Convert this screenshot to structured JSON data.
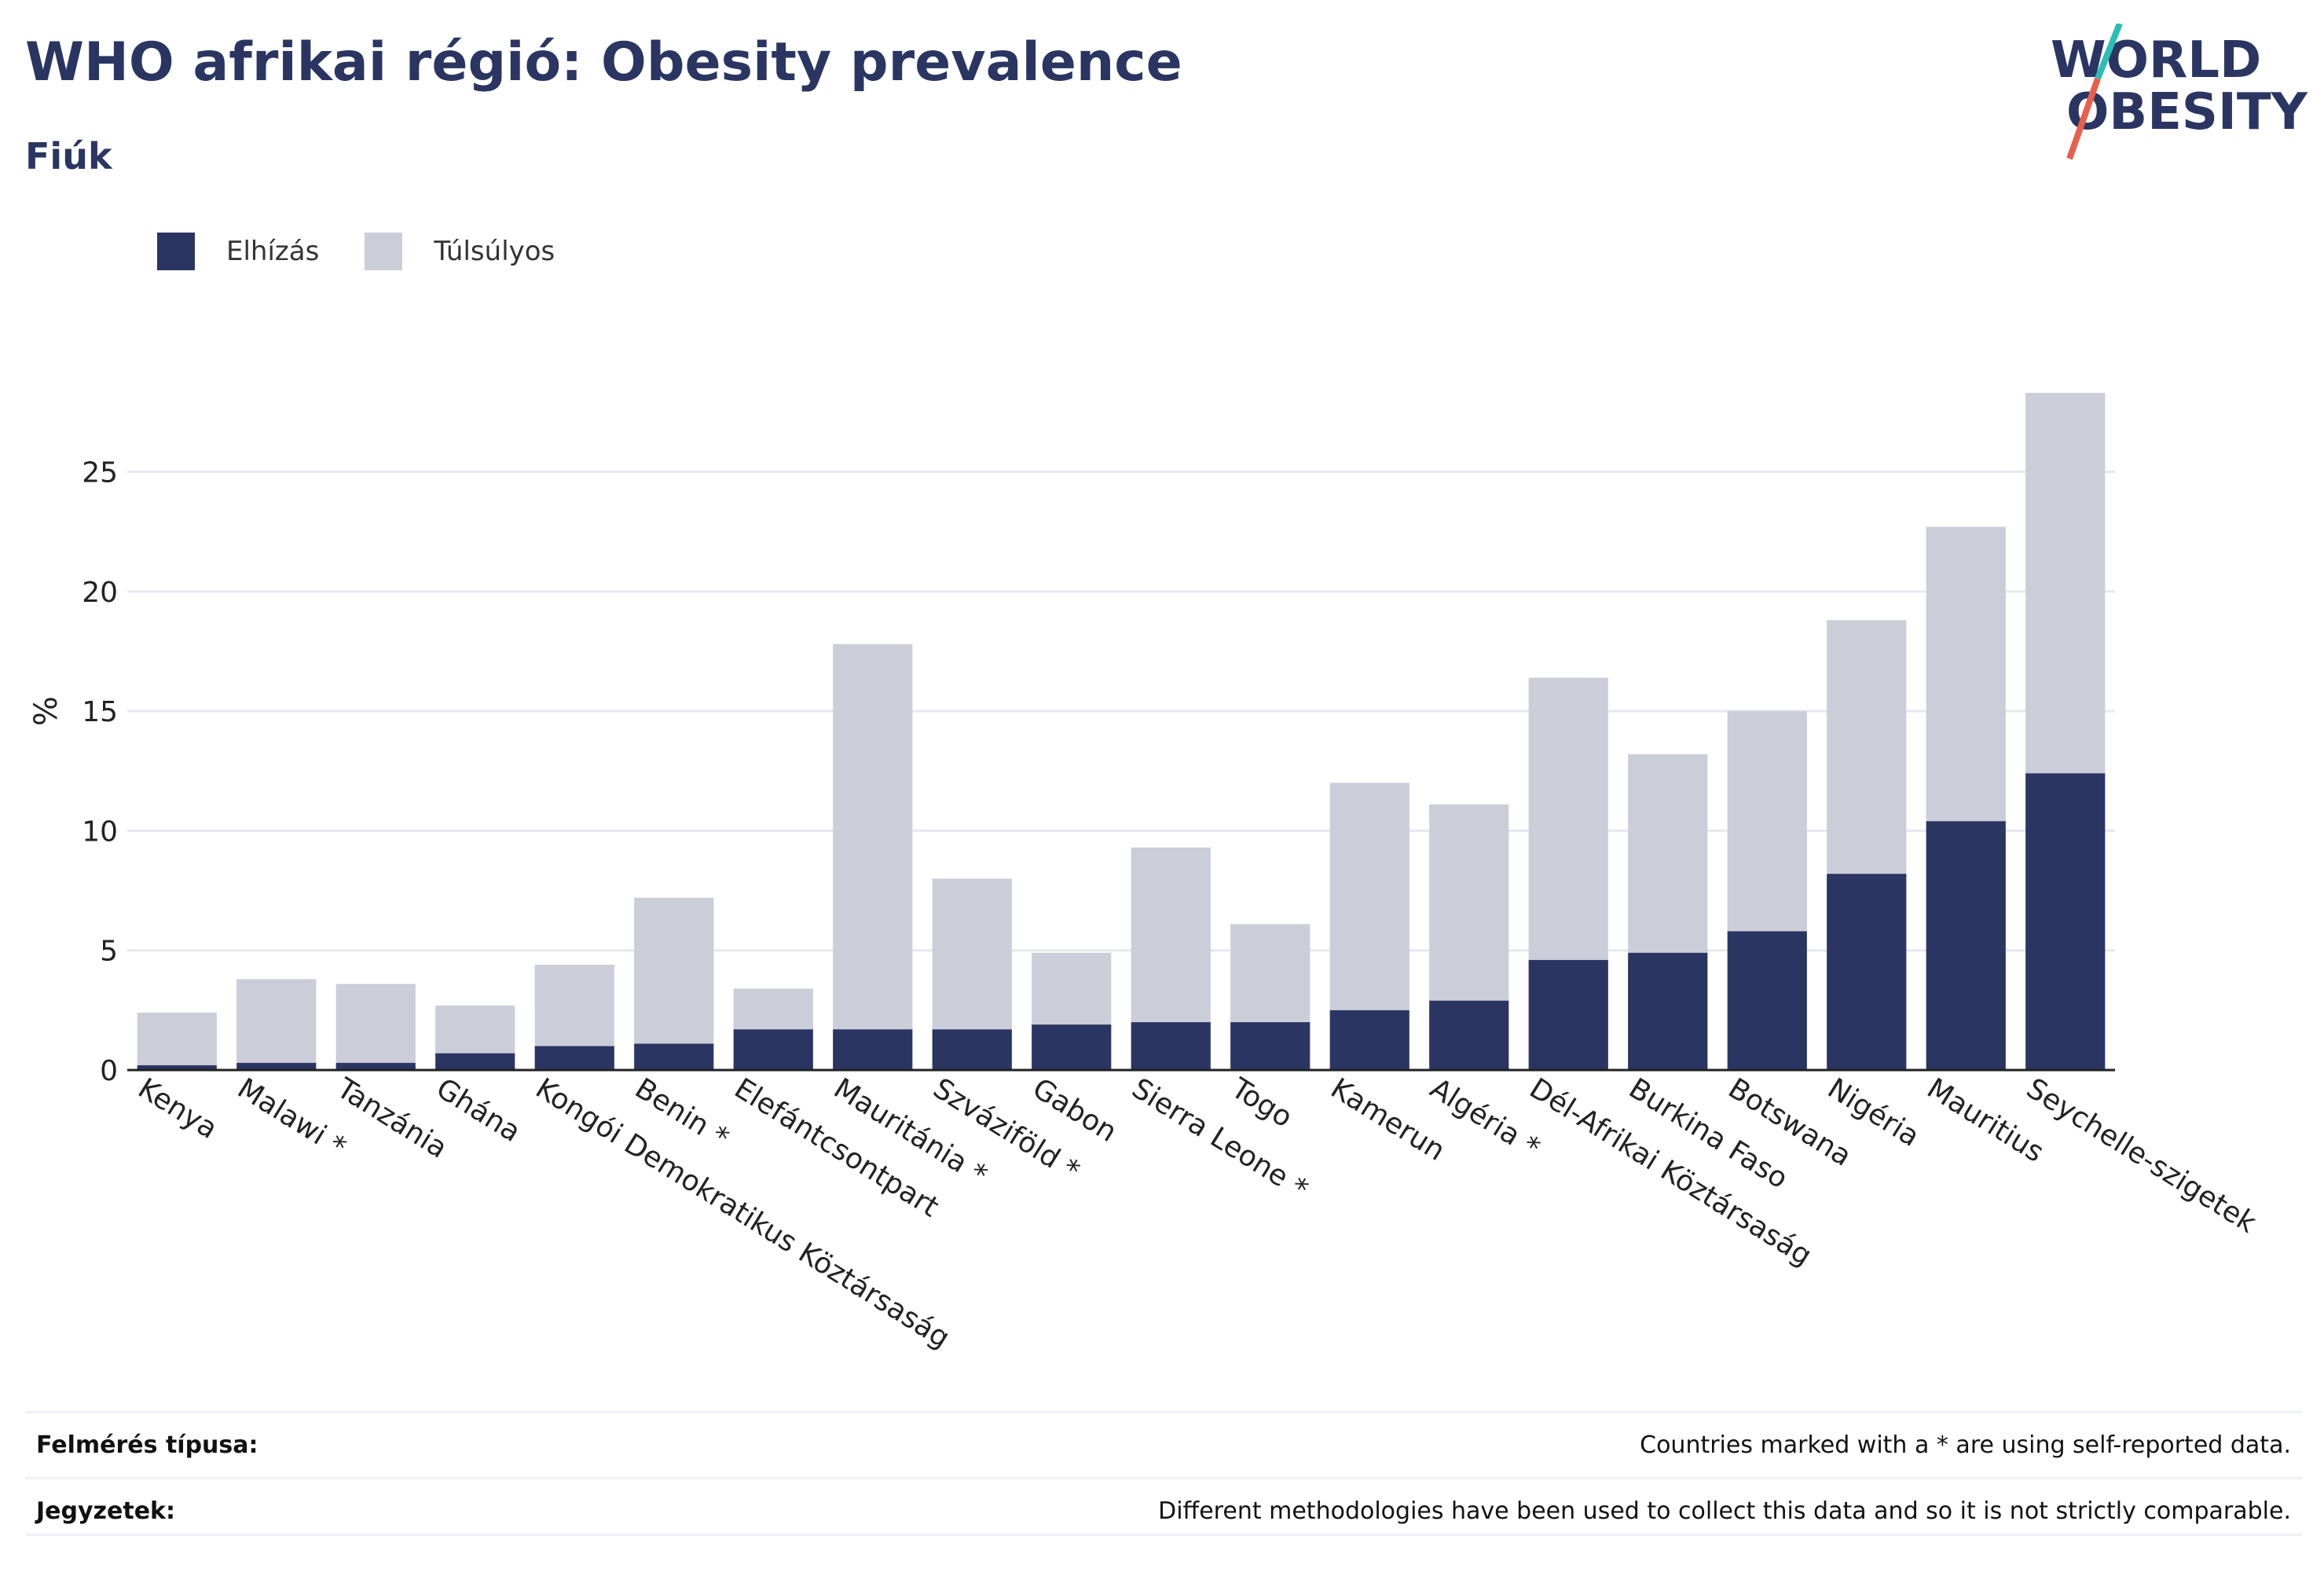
{
  "header": {
    "title": "WHO afrikai régió: Obesity prevalence",
    "subtitle": "Fiúk"
  },
  "logo": {
    "line1": "WORLD",
    "line2": "OBESITY",
    "text_color": "#2a3562",
    "slash_colors": [
      "#2dbdb6",
      "#e8604c"
    ]
  },
  "colors": {
    "obesity": "#2a3562",
    "overweight": "#cbcdd9",
    "grid": "#e6e8f0",
    "axis": "#222222"
  },
  "chart_data": {
    "type": "bar",
    "stacked": true,
    "categories": [
      "Kenya",
      "Malawi *",
      "Tanzánia",
      "Ghána",
      "Kongói Demokratikus Köztársaság",
      "Benin *",
      "Elefántcsontpart",
      "Mauritánia *",
      "Szváziföld *",
      "Gabon",
      "Sierra Leone *",
      "Togo",
      "Kamerun",
      "Algéria *",
      "Dél-Afrikai Köztársaság",
      "Burkina Faso",
      "Botswana",
      "Nigéria",
      "Mauritius",
      "Seychelle-szigetek"
    ],
    "series": [
      {
        "name": "Elhízás",
        "values": [
          0.2,
          0.3,
          0.3,
          0.7,
          1.0,
          1.1,
          1.7,
          1.7,
          1.7,
          1.9,
          2.0,
          2.0,
          2.5,
          2.9,
          4.6,
          4.9,
          5.8,
          8.2,
          10.4,
          12.4
        ]
      },
      {
        "name": "Túlsúlyos",
        "values": [
          2.2,
          3.5,
          3.3,
          2.0,
          3.4,
          6.1,
          1.7,
          16.1,
          6.3,
          3.0,
          7.3,
          4.1,
          9.5,
          8.2,
          11.8,
          8.3,
          9.2,
          10.6,
          12.3,
          15.9
        ]
      }
    ],
    "ylabel": "%",
    "xlabel": "",
    "ylim": [
      0,
      28.4
    ],
    "yticks": [
      0,
      5,
      10,
      15,
      20,
      25
    ],
    "grid": true,
    "legend_position": "top-left"
  },
  "footer": {
    "survey_label": "Felmérés típusa:",
    "survey_value": "Countries marked with a * are using self-reported data.",
    "notes_label": "Jegyzetek:",
    "notes_value": "Different methodologies have been used to collect this data and so it is not strictly comparable."
  }
}
